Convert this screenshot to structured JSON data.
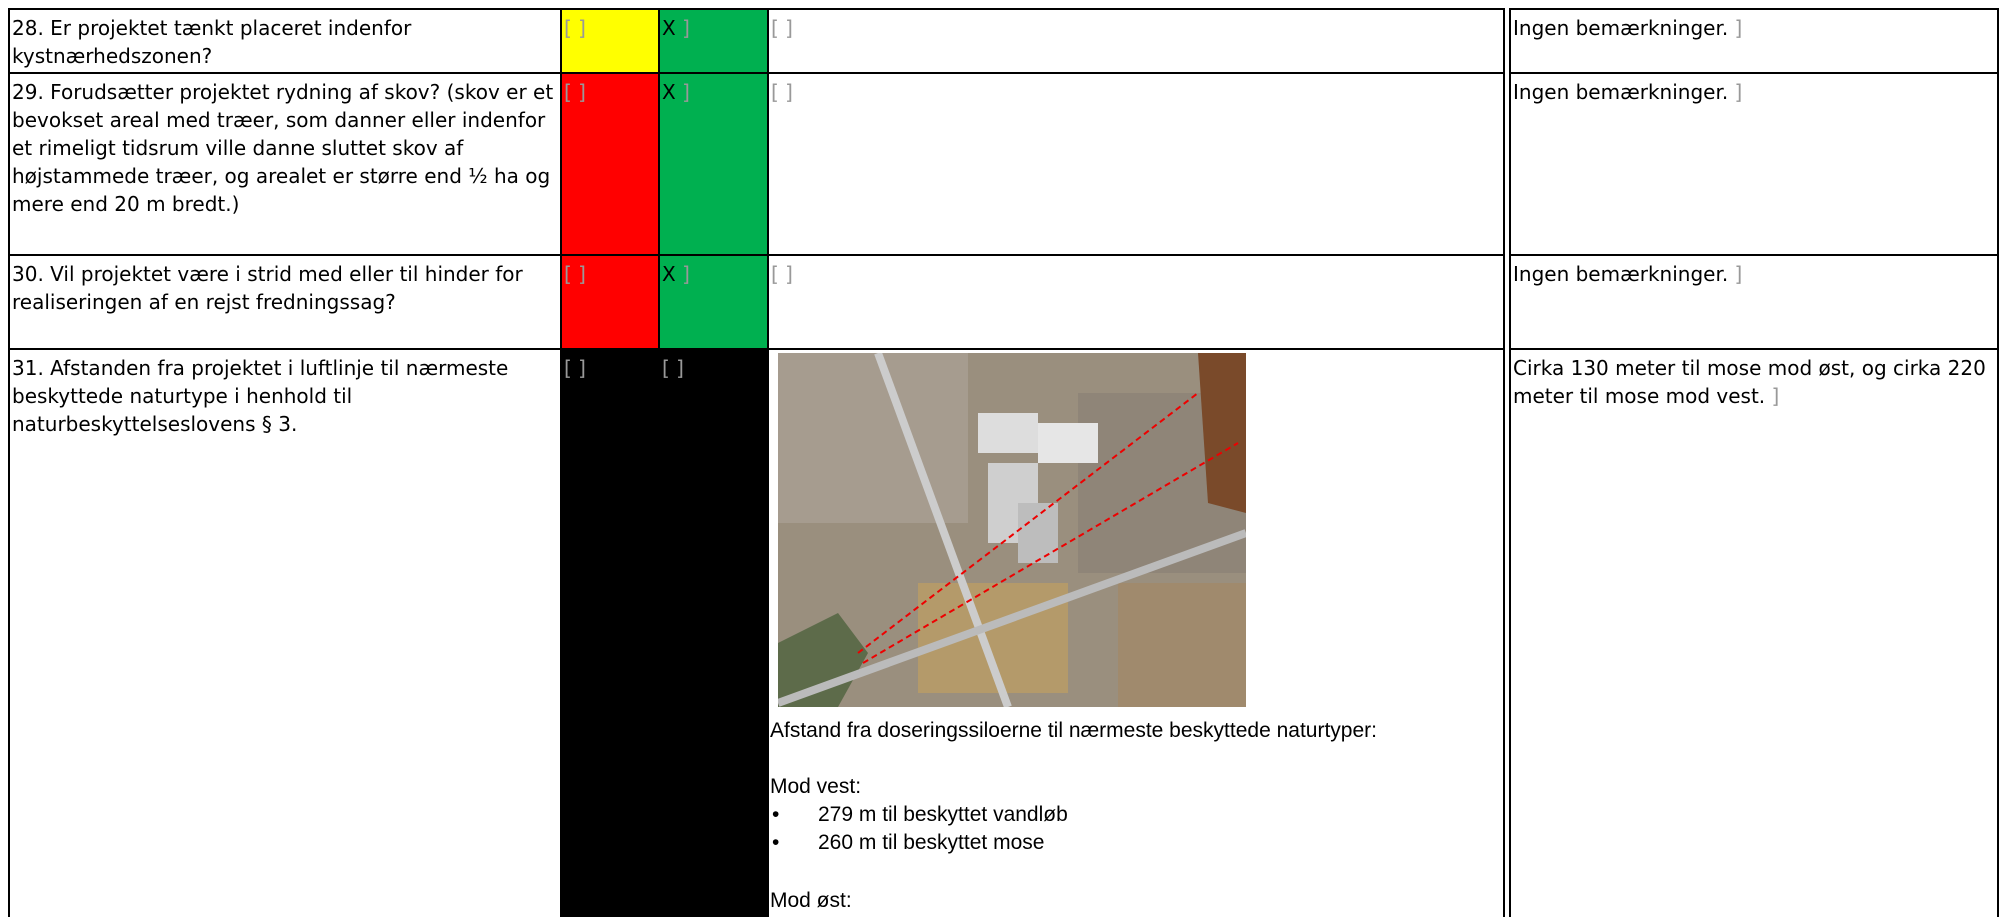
{
  "rows": [
    {
      "question": "28. Er projektet tænkt placeret indenfor kystnærhedszonen?",
      "answer_no": "X",
      "remark": "Ingen bemærkninger."
    },
    {
      "question": "29. Forudsætter projektet rydning af skov? (skov er et bevokset areal med træer, som danner eller indenfor et rimeligt tidsrum ville danne sluttet skov af højstammede træer, og arealet er større end ½ ha og mere end 20 m bredt.)",
      "answer_no": "X",
      "remark": "Ingen bemærkninger."
    },
    {
      "question": "30. Vil projektet være i strid med eller til hinder for realiseringen af en rejst fredningssag?",
      "answer_no": "X",
      "remark": "Ingen bemærkninger."
    },
    {
      "question": "31. Afstanden fra projektet i luftlinje til nærmeste beskyttede naturtype i henhold til naturbeskyttelseslovens § 3.",
      "remark": "Cirka 130 meter til mose mod øst, og cirka 220 meter til mose mod vest.",
      "details": {
        "intro": "Afstand fra doseringssiloerne til nærmeste beskyttede naturtyper:",
        "west_heading": "Mod vest:",
        "west_items": [
          "279 m til beskyttet vandløb",
          "260 m til beskyttet mose"
        ],
        "east_heading": "Mod øst:"
      }
    }
  ]
}
